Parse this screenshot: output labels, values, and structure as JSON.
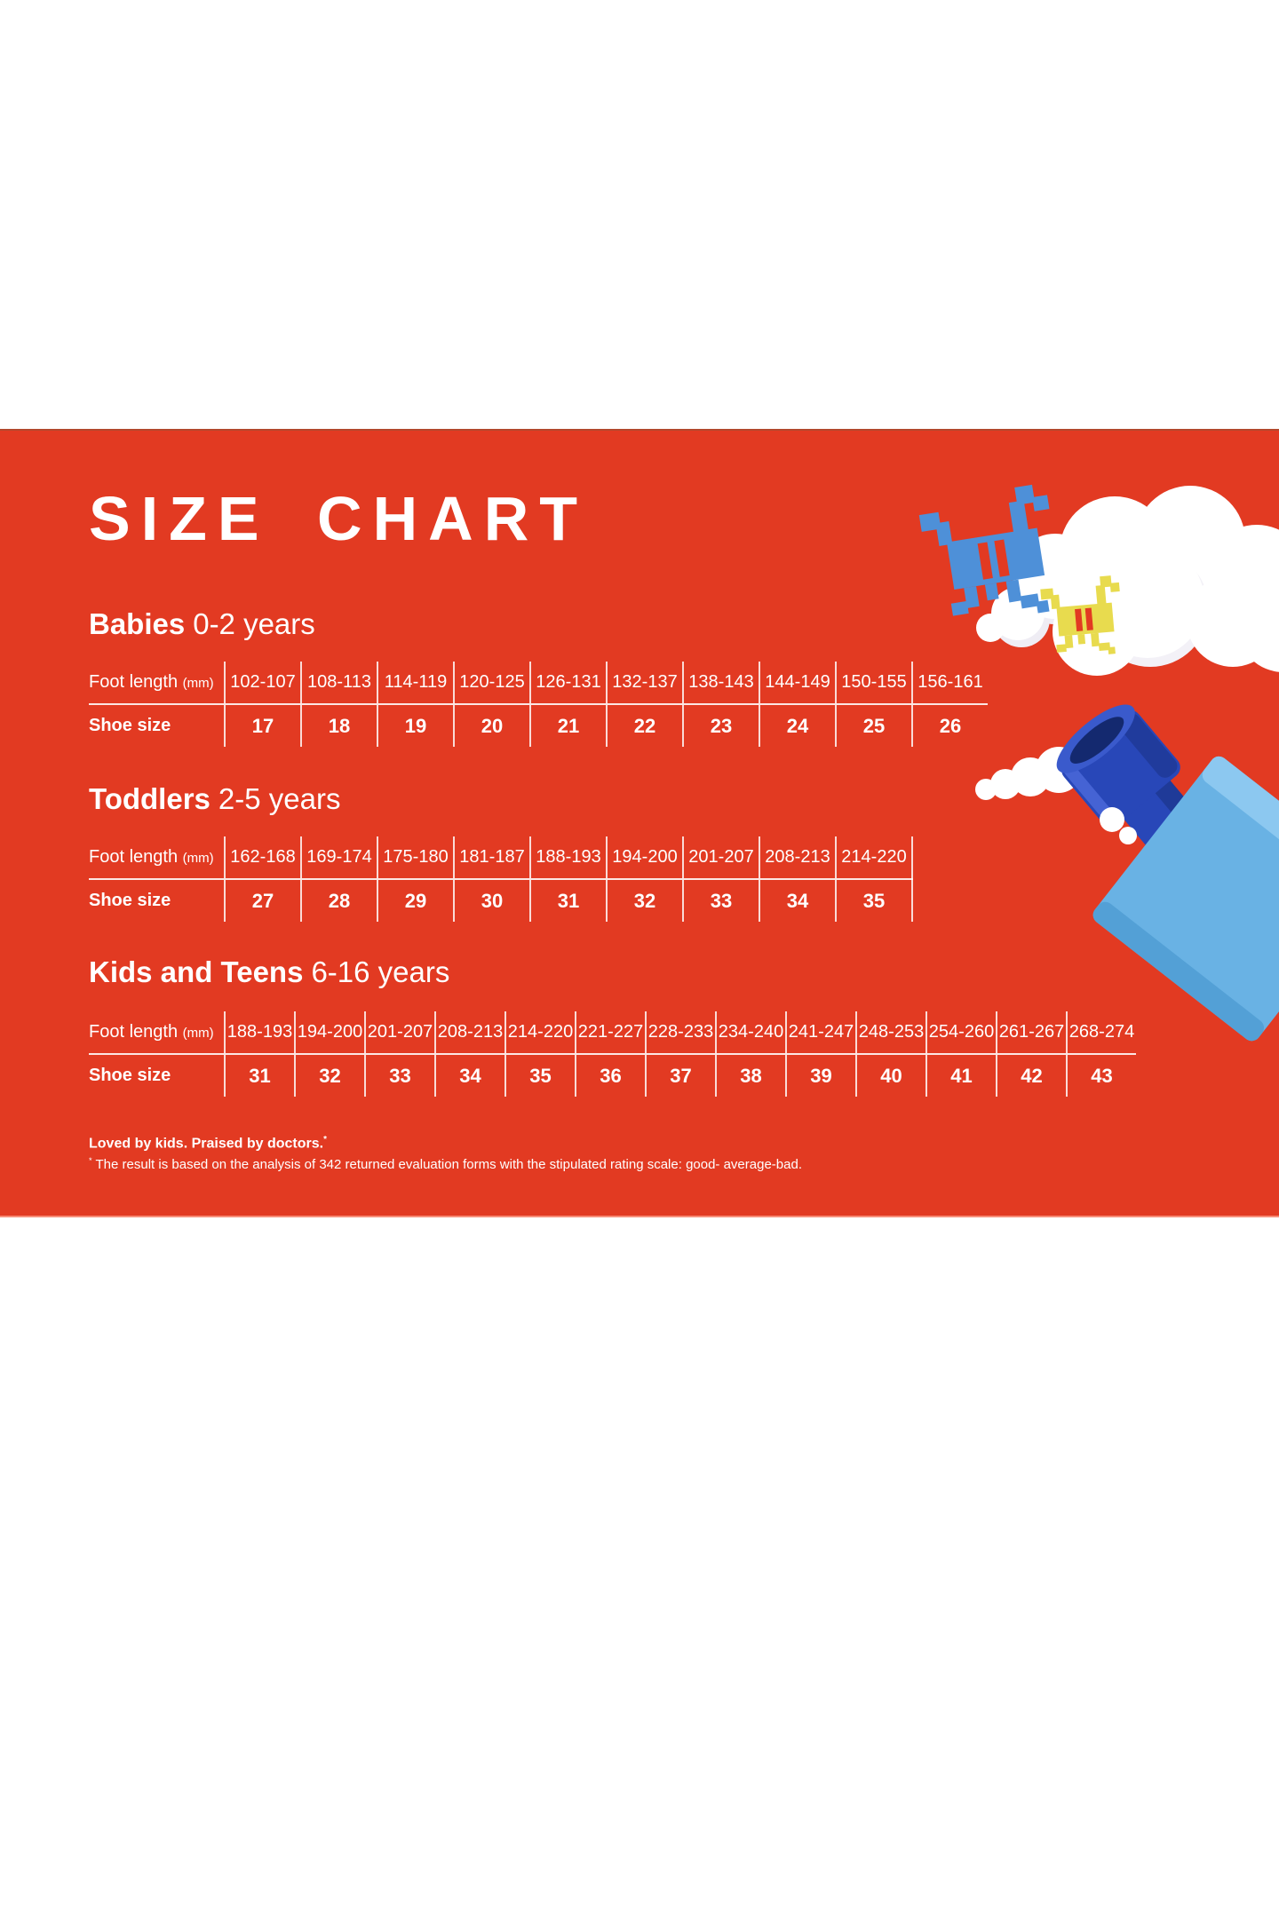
{
  "banner": {
    "title": "SIZE CHART",
    "background_color": "#E23A22",
    "text_color": "#FFFFFF",
    "table_line_color": "rgba(255,255,255,0.85)"
  },
  "sections": [
    {
      "name": "Babies",
      "age_range": "0-2 years",
      "table": {
        "row1_label": "Foot length",
        "row1_unit": "(mm)",
        "row2_label": "Shoe size",
        "foot_lengths": [
          "102-107",
          "108-113",
          "114-119",
          "120-125",
          "126-131",
          "132-137",
          "138-143",
          "144-149",
          "150-155",
          "156-161"
        ],
        "shoe_sizes": [
          "17",
          "18",
          "19",
          "20",
          "21",
          "22",
          "23",
          "24",
          "25",
          "26"
        ]
      }
    },
    {
      "name": "Toddlers",
      "age_range": "2-5 years",
      "table": {
        "row1_label": "Foot length",
        "row1_unit": "(mm)",
        "row2_label": "Shoe size",
        "foot_lengths": [
          "162-168",
          "169-174",
          "175-180",
          "181-187",
          "188-193",
          "194-200",
          "201-207",
          "208-213",
          "214-220"
        ],
        "shoe_sizes": [
          "27",
          "28",
          "29",
          "30",
          "31",
          "32",
          "33",
          "34",
          "35"
        ]
      }
    },
    {
      "name": "Kids and Teens",
      "age_range": "6-16 years",
      "table": {
        "row1_label": "Foot length",
        "row1_unit": "(mm)",
        "row2_label": "Shoe size",
        "foot_lengths": [
          "188-193",
          "194-200",
          "201-207",
          "208-213",
          "214-220",
          "221-227",
          "228-233",
          "234-240",
          "241-247",
          "248-253",
          "254-260",
          "261-267",
          "268-274"
        ],
        "shoe_sizes": [
          "31",
          "32",
          "33",
          "34",
          "35",
          "36",
          "37",
          "38",
          "39",
          "40",
          "41",
          "42",
          "43"
        ]
      }
    }
  ],
  "footnote": {
    "headline": "Loved by kids. Praised by doctors.",
    "headline_asterisk": "*",
    "detail_asterisk": "*",
    "detail": " The result is based on the analysis of 342 returned evaluation forms with the stipulated rating scale: good- average-bad."
  },
  "decor": {
    "cloud_large": {
      "icon": "cloud-icon",
      "color": "#FFFFFF"
    },
    "cloud_small": {
      "icon": "cloud-icon",
      "color": "#FFFFFF"
    },
    "pixel_toy_blue": {
      "icon": "pixel-invader-toy-icon",
      "color": "#4E90D8"
    },
    "pixel_toy_yellow": {
      "icon": "pixel-invader-toy-icon",
      "color": "#E8DB4E"
    },
    "block_toy": {
      "icon": "toy-block-icon",
      "cube_color": "#69B2E4",
      "peg_color": "#2847B8"
    }
  }
}
